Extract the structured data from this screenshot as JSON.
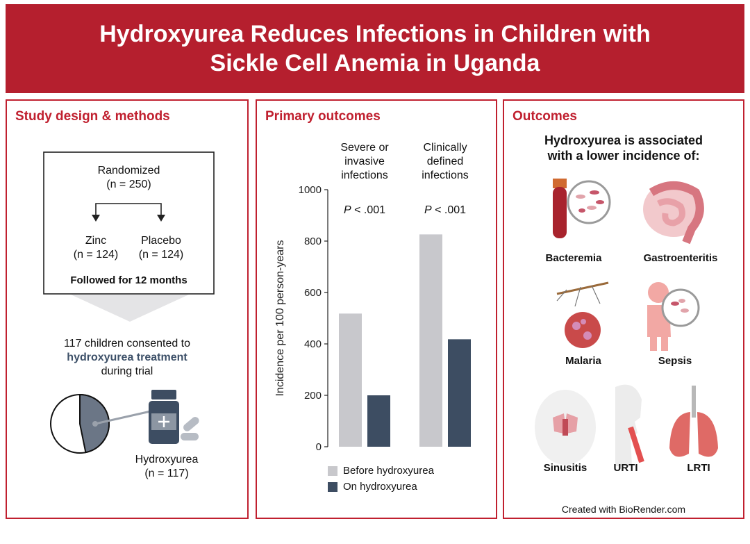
{
  "title": {
    "line1": "Hydroxyurea Reduces Infections in Children with",
    "line2": "Sickle Cell Anemia in Uganda"
  },
  "design": {
    "heading": "Study design & methods",
    "randomized": "Randomized",
    "randomized_n": "(n = 250)",
    "zinc": "Zinc",
    "zinc_n": "(n = 124)",
    "placebo": "Placebo",
    "placebo_n": "(n = 124)",
    "followed": "Followed for 12 months",
    "consent_line1": "117 children consented to",
    "consent_highlight": "hydroxyurea treatment",
    "consent_line3": "during trial",
    "drug_label": "Hydroxyurea",
    "drug_n": "(n = 117)",
    "pie_fraction": 0.468
  },
  "primary": {
    "heading": "Primary outcomes",
    "group1_label": [
      "Severe or",
      "invasive",
      "infections"
    ],
    "group2_label": [
      "Clinically",
      "defined",
      "infections"
    ],
    "p1": "< .001",
    "p2": "< .001",
    "p_symbol": "P",
    "legend_before": "Before hydroxyurea",
    "legend_on": "On hydroxyurea"
  },
  "chart_data": {
    "type": "bar",
    "categories": [
      "Severe or invasive infections",
      "Clinically defined infections"
    ],
    "series": [
      {
        "name": "Before hydroxyurea",
        "values": [
          518,
          826
        ],
        "color": "#c8c8cc"
      },
      {
        "name": "On hydroxyurea",
        "values": [
          200,
          418
        ],
        "color": "#3d4d62"
      }
    ],
    "ylabel": "Incidence per 100 person-years",
    "ylim": [
      0,
      1000
    ],
    "yticks": [
      "0",
      "200",
      "400",
      "600",
      "800",
      "1000"
    ],
    "grid": false,
    "legend": "bottom"
  },
  "outcomes": {
    "heading": "Outcomes",
    "sub_line1": "Hydroxyurea is associated",
    "sub_line2": "with a lower incidence of:",
    "items": [
      "Bacteremia",
      "Gastroenteritis",
      "Malaria",
      "Sepsis",
      "Sinusitis",
      "URTI",
      "LRTI"
    ],
    "credit": "Created with BioRender.com"
  },
  "colors": {
    "brand_red": "#b51f2e",
    "navy": "#3d4d62",
    "light_gray": "#c8c8cc"
  }
}
